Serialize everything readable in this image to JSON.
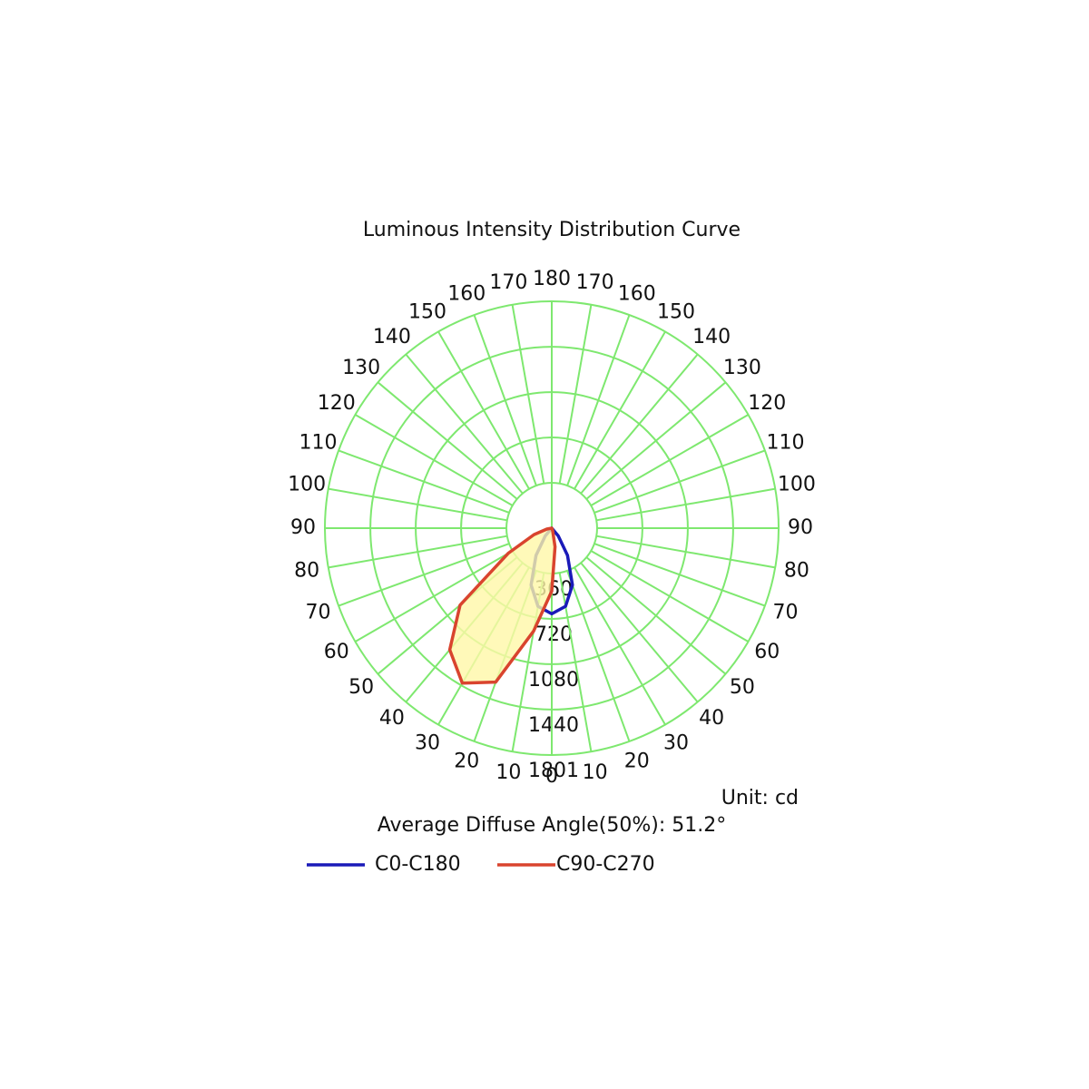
{
  "chart_data": {
    "type": "polar",
    "title": "Luminous Intensity Distribution Curve",
    "angle_ticks": [
      0,
      10,
      20,
      30,
      40,
      50,
      60,
      70,
      80,
      90,
      100,
      110,
      120,
      130,
      140,
      150,
      160,
      170,
      180
    ],
    "rlim": [
      0,
      1801
    ],
    "rticks": [
      360,
      720,
      1080,
      1440,
      1801
    ],
    "x": [
      -90,
      -80,
      -70,
      -60,
      -50,
      -40,
      -30,
      -20,
      -10,
      0,
      10,
      20,
      30,
      40,
      50,
      60,
      70,
      80,
      90
    ],
    "series": [
      {
        "name": "C0-C180",
        "color": "#1a1ab8",
        "values": [
          0,
          0,
          0,
          0,
          0,
          80,
          250,
          480,
          630,
          680,
          630,
          480,
          250,
          80,
          0,
          0,
          0,
          0,
          0
        ]
      },
      {
        "name": "C90-C270",
        "color": "#d9442e",
        "fill": "#fff8a8",
        "values": [
          0,
          40,
          150,
          400,
          950,
          1260,
          1420,
          1300,
          830,
          500,
          150,
          20,
          0,
          0,
          0,
          0,
          0,
          0,
          0
        ]
      }
    ],
    "unit_label": "Unit: cd",
    "annotation": "Average Diffuse Angle(50%): 51.2°"
  }
}
